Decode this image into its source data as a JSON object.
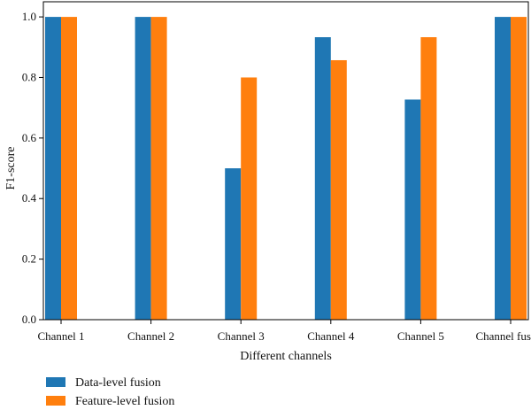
{
  "chart_data": {
    "type": "bar",
    "title": "",
    "xlabel": "Different channels",
    "ylabel": "F1-score",
    "categories": [
      "Channel 1",
      "Channel 2",
      "Channel 3",
      "Channel 4",
      "Channel 5",
      "Channel fusion"
    ],
    "series": [
      {
        "name": "Data-level fusion",
        "color": "#1f77b4",
        "values": [
          1.0,
          1.0,
          0.5,
          0.933,
          0.727,
          1.0
        ]
      },
      {
        "name": "Feature-level fusion",
        "color": "#ff7f0e",
        "values": [
          1.0,
          1.0,
          0.8,
          0.857,
          0.933,
          1.0
        ]
      }
    ],
    "ylim": [
      0.0,
      1.05
    ],
    "yticks": [
      "0.0",
      "0.2",
      "0.4",
      "0.6",
      "0.8",
      "1.0"
    ],
    "grid": false,
    "legend_position": "bottom-left"
  }
}
